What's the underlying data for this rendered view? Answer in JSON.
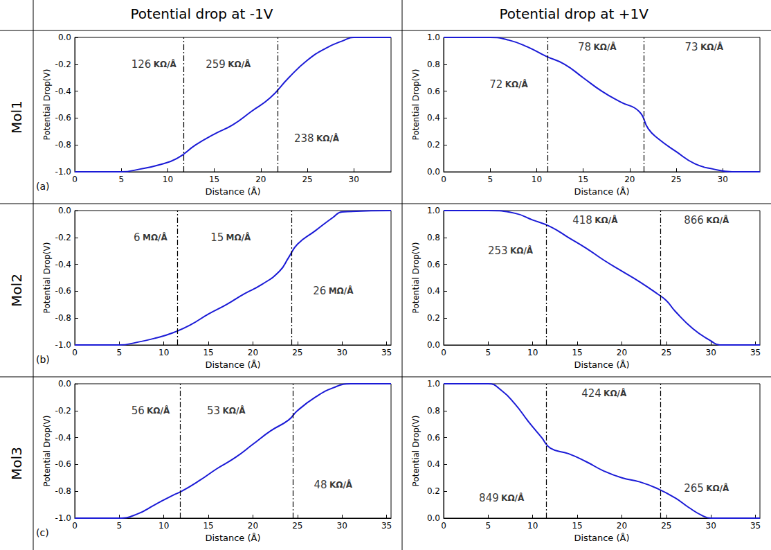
{
  "column_titles": [
    "Potential drop at -1V",
    "Potential drop at +1V"
  ],
  "row_titles": [
    "Mol1",
    "Mol2",
    "Mol3"
  ],
  "chart_data": [
    {
      "type": "line",
      "panel_label": "(a)",
      "x_label": "Distance (Å)",
      "y_label": "Potential Drop(V)",
      "xlim": [
        0,
        34
      ],
      "xticks": [
        0,
        5,
        10,
        15,
        20,
        25,
        30
      ],
      "ylim": [
        -1,
        0
      ],
      "yticks": [
        {
          "value": -1,
          "label": "-1.0"
        },
        -0.8,
        -0.6,
        -0.4,
        -0.2,
        {
          "value": 0,
          "label": "0.0"
        }
      ],
      "grid": false,
      "color": "#1a1ad6",
      "x": [
        0,
        5,
        7,
        9,
        11,
        13,
        15,
        17,
        19,
        21,
        23,
        25,
        27,
        29,
        30,
        34
      ],
      "values": [
        -1,
        -1,
        -0.98,
        -0.95,
        -0.9,
        -0.8,
        -0.72,
        -0.65,
        -0.55,
        -0.45,
        -0.3,
        -0.17,
        -0.08,
        -0.02,
        0,
        0
      ],
      "dividers": [
        11.7,
        21.8
      ],
      "annotations": [
        {
          "text": "126",
          "unit": "KΩ/Å",
          "x": 8.5,
          "y": -0.2
        },
        {
          "text": "259",
          "unit": "KΩ/Å",
          "x": 16.5,
          "y": -0.2
        },
        {
          "text": "238",
          "unit": "KΩ/Å",
          "x": 26,
          "y": -0.75
        }
      ]
    },
    {
      "type": "line",
      "x_label": "Distance (Å)",
      "y_label": "Potential Drop(V)",
      "xlim": [
        0,
        34
      ],
      "xticks": [
        0,
        5,
        10,
        15,
        20,
        25,
        30
      ],
      "ylim": [
        0,
        1
      ],
      "yticks": [
        {
          "value": 0,
          "label": "0.0"
        },
        0.2,
        0.4,
        0.6,
        0.8,
        {
          "value": 1,
          "label": "1.0"
        }
      ],
      "grid": false,
      "color": "#1a1ad6",
      "x": [
        0,
        5,
        7,
        9,
        11,
        13,
        15,
        17,
        19,
        21,
        22,
        23,
        25,
        27,
        29,
        31,
        34
      ],
      "values": [
        1,
        1,
        0.98,
        0.93,
        0.86,
        0.8,
        0.7,
        0.6,
        0.52,
        0.45,
        0.32,
        0.25,
        0.15,
        0.06,
        0.02,
        0,
        0
      ],
      "dividers": [
        11.2,
        21.5
      ],
      "annotations": [
        {
          "text": "72",
          "unit": "KΩ/Å",
          "x": 7,
          "y": 0.65
        },
        {
          "text": "78",
          "unit": "KΩ/Å",
          "x": 16.5,
          "y": 0.93
        },
        {
          "text": "73",
          "unit": "KΩ/Å",
          "x": 28,
          "y": 0.93
        }
      ]
    },
    {
      "type": "line",
      "panel_label": "(b)",
      "x_label": "Distance (Å)",
      "y_label": "Potential Drop(V)",
      "xlim": [
        0,
        35.5
      ],
      "xticks": [
        0,
        5,
        10,
        15,
        20,
        25,
        30,
        35
      ],
      "ylim": [
        -1,
        0
      ],
      "yticks": [
        {
          "value": -1,
          "label": "-1.0"
        },
        -0.8,
        -0.6,
        -0.4,
        -0.2,
        {
          "value": 0,
          "label": "0.0"
        }
      ],
      "grid": false,
      "color": "#1a1ad6",
      "x": [
        0,
        5,
        7,
        9,
        11,
        13,
        15,
        17,
        19,
        21,
        23,
        24,
        25,
        27,
        29,
        30,
        35.5
      ],
      "values": [
        -1,
        -1,
        -0.98,
        -0.95,
        -0.91,
        -0.85,
        -0.77,
        -0.7,
        -0.62,
        -0.55,
        -0.45,
        -0.35,
        -0.25,
        -0.15,
        -0.05,
        -0.01,
        0
      ],
      "dividers": [
        11.5,
        24.3
      ],
      "annotations": [
        {
          "text": "6",
          "unit": "MΩ/Å",
          "x": 8.5,
          "y": -0.2
        },
        {
          "text": "15",
          "unit": "MΩ/Å",
          "x": 17.5,
          "y": -0.2
        },
        {
          "text": "26",
          "unit": "MΩ/Å",
          "x": 29,
          "y": -0.6
        }
      ]
    },
    {
      "type": "line",
      "x_label": "Distance (Å)",
      "y_label": "Potential Drop(V)",
      "xlim": [
        0,
        35.5
      ],
      "xticks": [
        0,
        5,
        10,
        15,
        20,
        25,
        30,
        35
      ],
      "ylim": [
        0,
        1
      ],
      "yticks": [
        {
          "value": 0,
          "label": "0.0"
        },
        0.2,
        0.4,
        0.6,
        0.8,
        {
          "value": 1,
          "label": "1.0"
        }
      ],
      "grid": false,
      "color": "#1a1ad6",
      "x": [
        0,
        5,
        8,
        10,
        12,
        14,
        16,
        18,
        20,
        22,
        24,
        25,
        26,
        28,
        30,
        31,
        35.5
      ],
      "values": [
        1,
        1,
        0.98,
        0.93,
        0.88,
        0.8,
        0.72,
        0.63,
        0.55,
        0.47,
        0.38,
        0.33,
        0.25,
        0.12,
        0.03,
        0,
        0
      ],
      "dividers": [
        11.5,
        24.3
      ],
      "annotations": [
        {
          "text": "253",
          "unit": "KΩ/Å",
          "x": 7.5,
          "y": 0.7
        },
        {
          "text": "418",
          "unit": "KΩ/Å",
          "x": 17,
          "y": 0.93
        },
        {
          "text": "866",
          "unit": "KΩ/Å",
          "x": 29.5,
          "y": 0.93
        }
      ]
    },
    {
      "type": "line",
      "panel_label": "(c)",
      "x_label": "Distance (Å)",
      "y_label": "Potential Drop(V)",
      "xlim": [
        0,
        35.5
      ],
      "xticks": [
        0,
        5,
        10,
        15,
        20,
        25,
        30,
        35
      ],
      "ylim": [
        -1,
        0
      ],
      "yticks": [
        {
          "value": -1,
          "label": "-1.0"
        },
        -0.8,
        -0.6,
        -0.4,
        -0.2,
        {
          "value": 0,
          "label": "0.0"
        }
      ],
      "grid": false,
      "color": "#1a1ad6",
      "x": [
        0,
        5,
        7,
        9,
        11,
        12,
        14,
        16,
        18,
        20,
        22,
        24,
        25,
        27,
        29,
        31,
        35.5
      ],
      "values": [
        -1,
        -1,
        -0.97,
        -0.9,
        -0.83,
        -0.8,
        -0.72,
        -0.63,
        -0.55,
        -0.45,
        -0.35,
        -0.27,
        -0.2,
        -0.1,
        -0.03,
        0,
        0
      ],
      "dividers": [
        11.8,
        24.5
      ],
      "annotations": [
        {
          "text": "56",
          "unit": "KΩ/Å",
          "x": 8.5,
          "y": -0.2
        },
        {
          "text": "53",
          "unit": "KΩ/Å",
          "x": 17,
          "y": -0.2
        },
        {
          "text": "48",
          "unit": "KΩ/Å",
          "x": 29,
          "y": -0.75
        }
      ]
    },
    {
      "type": "line",
      "x_label": "Distance (Å)",
      "y_label": "Potential Drop(V)",
      "xlim": [
        0,
        35.5
      ],
      "xticks": [
        0,
        5,
        10,
        15,
        20,
        25,
        30,
        35
      ],
      "ylim": [
        0,
        1
      ],
      "yticks": [
        {
          "value": 0,
          "label": "0.0"
        },
        0.2,
        0.4,
        0.6,
        0.8,
        {
          "value": 1,
          "label": "1.0"
        }
      ],
      "grid": false,
      "color": "#1a1ad6",
      "x": [
        0,
        5,
        6.5,
        8,
        9.5,
        11,
        12,
        14,
        16,
        18,
        20,
        22,
        24,
        26,
        27.5,
        29,
        30,
        35.5
      ],
      "values": [
        1,
        1,
        0.95,
        0.85,
        0.72,
        0.6,
        0.52,
        0.48,
        0.42,
        0.35,
        0.3,
        0.27,
        0.22,
        0.15,
        0.08,
        0.02,
        0,
        0
      ],
      "dividers": [
        11.5,
        24.3
      ],
      "annotations": [
        {
          "text": "849",
          "unit": "KΩ/Å",
          "x": 6.5,
          "y": 0.15
        },
        {
          "text": "424",
          "unit": "KΩ/Å",
          "x": 18,
          "y": 0.93
        },
        {
          "text": "265",
          "unit": "KΩ/Å",
          "x": 29.5,
          "y": 0.22
        }
      ]
    }
  ]
}
